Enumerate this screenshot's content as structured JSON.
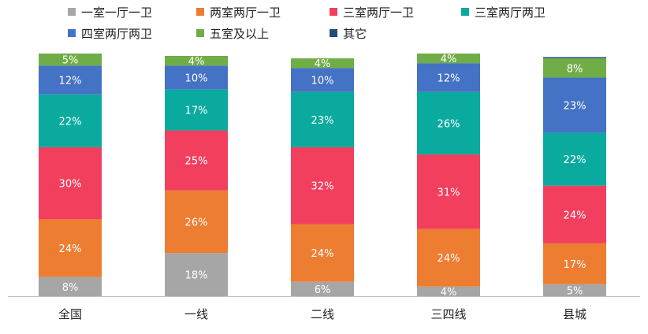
{
  "chart_data": {
    "type": "bar",
    "stacked": true,
    "percent": true,
    "categories": [
      "全国",
      "一线",
      "二线",
      "三四线",
      "县城"
    ],
    "ylim": [
      0,
      100
    ],
    "grid": false,
    "legend_position": "top",
    "series": [
      {
        "name": "一室一厅一卫",
        "color": "#a6a6a6",
        "values": [
          8,
          18,
          6,
          4,
          5
        ],
        "labels": [
          "8%",
          "18%",
          "6%",
          "4%",
          "5%"
        ]
      },
      {
        "name": "两室两厅一卫",
        "color": "#ed7d31",
        "values": [
          24,
          26,
          24,
          24,
          17
        ],
        "labels": [
          "24%",
          "26%",
          "24%",
          "24%",
          "17%"
        ]
      },
      {
        "name": "三室两厅一卫",
        "color": "#f23f5d",
        "values": [
          30,
          25,
          32,
          31,
          24
        ],
        "labels": [
          "30%",
          "25%",
          "32%",
          "31%",
          "24%"
        ]
      },
      {
        "name": "三室两厅两卫",
        "color": "#0aaa9e",
        "values": [
          22,
          17,
          23,
          26,
          22
        ],
        "labels": [
          "22%",
          "17%",
          "23%",
          "26%",
          "22%"
        ]
      },
      {
        "name": "四室两厅两卫",
        "color": "#4472c4",
        "values": [
          12,
          10,
          10,
          12,
          23
        ],
        "labels": [
          "12%",
          "10%",
          "10%",
          "12%",
          "23%"
        ]
      },
      {
        "name": "五室及以上",
        "color": "#70ad47",
        "values": [
          5,
          4,
          4,
          4,
          8
        ],
        "labels": [
          "5%",
          "4%",
          "4%",
          "4%",
          "8%"
        ]
      },
      {
        "name": "其它",
        "color": "#1f4e79",
        "values": [
          0,
          0,
          0,
          0,
          0.5
        ],
        "labels": [
          "",
          "",
          "",
          "",
          ""
        ]
      }
    ]
  }
}
